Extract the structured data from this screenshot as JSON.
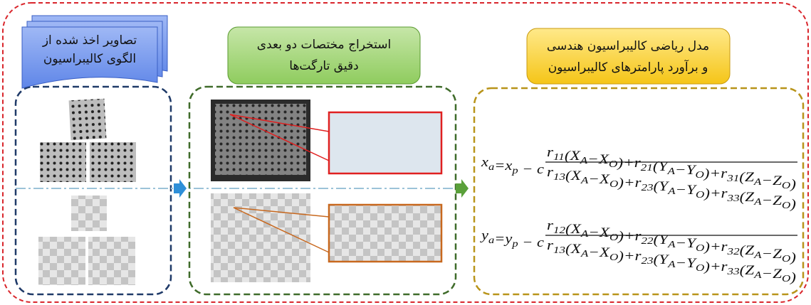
{
  "steps": [
    {
      "title": [
        "تصاویر اخذ شده از",
        "الگوی کالیبراسیون"
      ]
    },
    {
      "title": [
        "استخراج مختصات دو بعدی",
        "دقیق تارگت‌ها"
      ]
    },
    {
      "title": [
        "مدل ریاضی کالیبراسیون هندسی",
        "و برآورد پارامترهای کالیبراسیون"
      ]
    }
  ],
  "equations": [
    {
      "lhs": [
        [
          "x",
          "a"
        ],
        [
          "=x",
          "p"
        ],
        [
          " − c"
        ]
      ],
      "numerator": [
        [
          "r",
          "11"
        ],
        [
          "(X",
          "A"
        ],
        [
          "−X",
          "O"
        ],
        [
          ")+r",
          "21"
        ],
        [
          "(Y",
          "A"
        ],
        [
          "−Y",
          "O"
        ],
        [
          ")+r",
          "31"
        ],
        [
          "(Z",
          "A"
        ],
        [
          "−Z",
          "O"
        ],
        [
          ")"
        ]
      ],
      "denominator": [
        [
          "r",
          "13"
        ],
        [
          "(X",
          "A"
        ],
        [
          "−X",
          "O"
        ],
        [
          ")+r",
          "23"
        ],
        [
          "(Y",
          "A"
        ],
        [
          "−Y",
          "O"
        ],
        [
          ")+r",
          "33"
        ],
        [
          "(Z",
          "A"
        ],
        [
          "−Z",
          "O"
        ],
        [
          ")"
        ]
      ]
    },
    {
      "lhs": [
        [
          "y",
          "a"
        ],
        [
          "=y",
          "p"
        ],
        [
          " − c"
        ]
      ],
      "numerator": [
        [
          "r",
          "12"
        ],
        [
          "(X",
          "A"
        ],
        [
          "−X",
          "O"
        ],
        [
          ")+r",
          "22"
        ],
        [
          "(Y",
          "A"
        ],
        [
          "−Y",
          "O"
        ],
        [
          ")+r",
          "32"
        ],
        [
          "(Z",
          "A"
        ],
        [
          "−Z",
          "O"
        ],
        [
          ")"
        ]
      ],
      "denominator": [
        [
          "r",
          "13"
        ],
        [
          "(X",
          "A"
        ],
        [
          "−X",
          "O"
        ],
        [
          ")+r",
          "23"
        ],
        [
          "(Y",
          "A"
        ],
        [
          "−Y",
          "O"
        ],
        [
          ")+r",
          "33"
        ],
        [
          "(Z",
          "A"
        ],
        [
          "−Z",
          "O"
        ],
        [
          ")"
        ]
      ]
    }
  ]
}
